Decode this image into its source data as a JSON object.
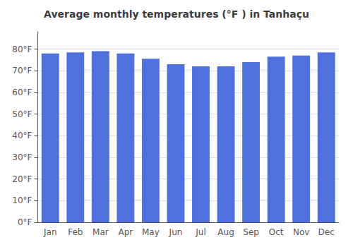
{
  "chart_data": {
    "type": "bar",
    "title": "Average monthly temperatures (°F ) in Tanhaçu",
    "categories": [
      "Jan",
      "Feb",
      "Mar",
      "Apr",
      "May",
      "Jun",
      "Jul",
      "Aug",
      "Sep",
      "Oct",
      "Nov",
      "Dec"
    ],
    "values": [
      78.0,
      78.5,
      79.0,
      78.0,
      75.5,
      73.0,
      72.0,
      72.0,
      74.0,
      76.5,
      77.0,
      78.5
    ],
    "ylim": [
      0,
      88
    ],
    "yticks": [
      {
        "value": 0,
        "label": "0°F"
      },
      {
        "value": 10,
        "label": "10°F"
      },
      {
        "value": 20,
        "label": "20°F"
      },
      {
        "value": 30,
        "label": "30°F"
      },
      {
        "value": 40,
        "label": "40°F"
      },
      {
        "value": 50,
        "label": "50°F"
      },
      {
        "value": 60,
        "label": "60°F"
      },
      {
        "value": 70,
        "label": "70°F"
      },
      {
        "value": 80,
        "label": "80°F"
      }
    ],
    "grid": true
  }
}
